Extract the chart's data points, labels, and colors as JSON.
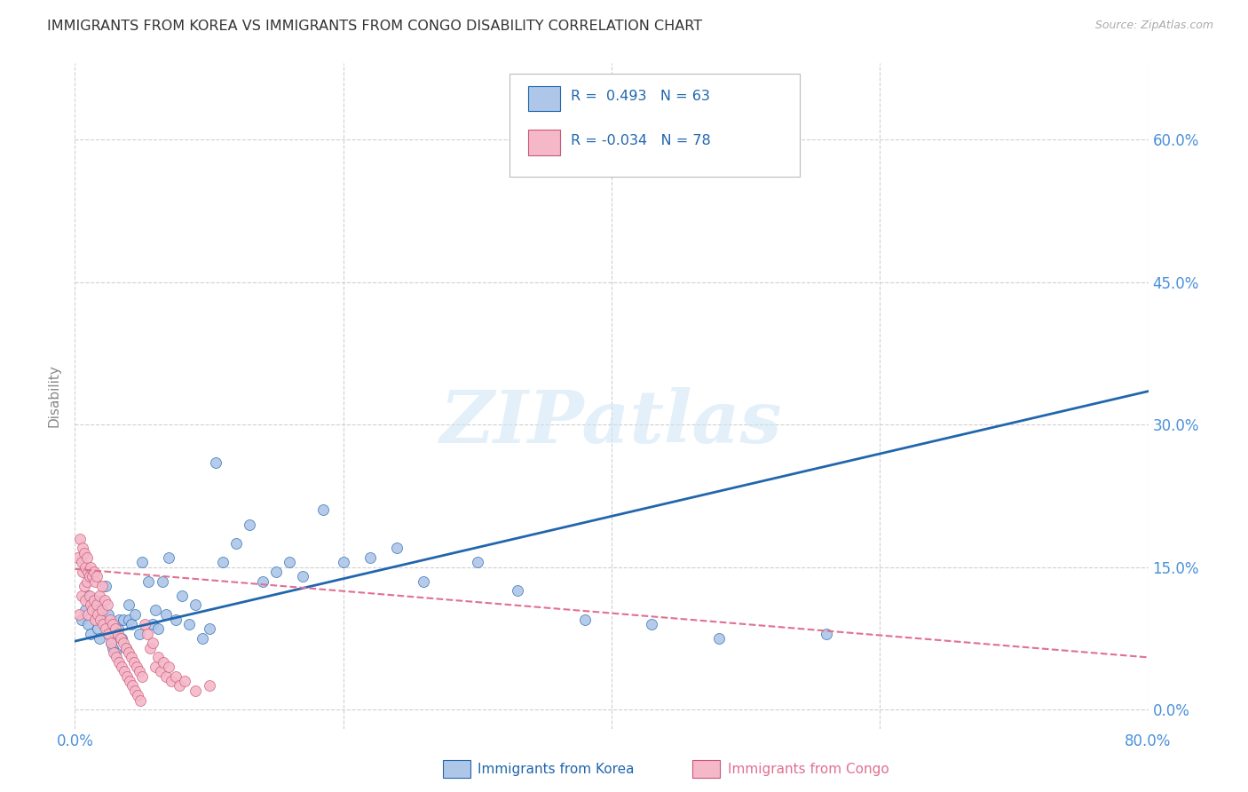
{
  "title": "IMMIGRANTS FROM KOREA VS IMMIGRANTS FROM CONGO DISABILITY CORRELATION CHART",
  "source": "Source: ZipAtlas.com",
  "ylabel": "Disability",
  "xlim": [
    0.0,
    0.8
  ],
  "ylim": [
    -0.02,
    0.68
  ],
  "yticks": [
    0.0,
    0.15,
    0.3,
    0.45,
    0.6
  ],
  "ytick_labels": [
    "0.0%",
    "15.0%",
    "30.0%",
    "45.0%",
    "60.0%"
  ],
  "xticks": [
    0.0,
    0.2,
    0.4,
    0.6,
    0.8
  ],
  "korea_R": 0.493,
  "korea_N": 63,
  "congo_R": -0.034,
  "congo_N": 78,
  "korea_color": "#aec6e8",
  "congo_color": "#f4b8c8",
  "korea_line_color": "#2166ac",
  "congo_line_color": "#e07090",
  "watermark": "ZIPatlas",
  "background_color": "#ffffff",
  "grid_color": "#d0d0d0",
  "title_color": "#333333",
  "axis_label_color": "#888888",
  "tick_color": "#4a90d9",
  "legend_r_color": "#2166ac",
  "korea_scatter_x": [
    0.005,
    0.008,
    0.01,
    0.01,
    0.012,
    0.013,
    0.015,
    0.015,
    0.017,
    0.018,
    0.02,
    0.02,
    0.022,
    0.023,
    0.025,
    0.025,
    0.027,
    0.028,
    0.03,
    0.03,
    0.032,
    0.033,
    0.035,
    0.036,
    0.038,
    0.04,
    0.04,
    0.042,
    0.045,
    0.048,
    0.05,
    0.055,
    0.058,
    0.06,
    0.062,
    0.065,
    0.068,
    0.07,
    0.075,
    0.08,
    0.085,
    0.09,
    0.095,
    0.1,
    0.105,
    0.11,
    0.12,
    0.13,
    0.14,
    0.15,
    0.16,
    0.17,
    0.185,
    0.2,
    0.22,
    0.24,
    0.26,
    0.3,
    0.33,
    0.38,
    0.43,
    0.48,
    0.56
  ],
  "korea_scatter_y": [
    0.095,
    0.105,
    0.09,
    0.12,
    0.08,
    0.11,
    0.1,
    0.115,
    0.085,
    0.075,
    0.095,
    0.105,
    0.09,
    0.13,
    0.08,
    0.1,
    0.07,
    0.065,
    0.08,
    0.06,
    0.085,
    0.095,
    0.075,
    0.095,
    0.065,
    0.095,
    0.11,
    0.09,
    0.1,
    0.08,
    0.155,
    0.135,
    0.09,
    0.105,
    0.085,
    0.135,
    0.1,
    0.16,
    0.095,
    0.12,
    0.09,
    0.11,
    0.075,
    0.085,
    0.26,
    0.155,
    0.175,
    0.195,
    0.135,
    0.145,
    0.155,
    0.14,
    0.21,
    0.155,
    0.16,
    0.17,
    0.135,
    0.155,
    0.125,
    0.095,
    0.09,
    0.075,
    0.08
  ],
  "congo_scatter_x": [
    0.002,
    0.003,
    0.004,
    0.005,
    0.005,
    0.006,
    0.006,
    0.007,
    0.007,
    0.008,
    0.008,
    0.009,
    0.009,
    0.01,
    0.01,
    0.011,
    0.011,
    0.012,
    0.012,
    0.013,
    0.013,
    0.014,
    0.014,
    0.015,
    0.015,
    0.016,
    0.016,
    0.017,
    0.018,
    0.019,
    0.02,
    0.02,
    0.021,
    0.022,
    0.023,
    0.024,
    0.025,
    0.026,
    0.027,
    0.028,
    0.029,
    0.03,
    0.031,
    0.032,
    0.033,
    0.034,
    0.035,
    0.036,
    0.037,
    0.038,
    0.039,
    0.04,
    0.041,
    0.042,
    0.043,
    0.044,
    0.045,
    0.046,
    0.047,
    0.048,
    0.049,
    0.05,
    0.052,
    0.054,
    0.056,
    0.058,
    0.06,
    0.062,
    0.064,
    0.066,
    0.068,
    0.07,
    0.072,
    0.075,
    0.078,
    0.082,
    0.09,
    0.1
  ],
  "congo_scatter_y": [
    0.16,
    0.1,
    0.18,
    0.12,
    0.155,
    0.145,
    0.17,
    0.13,
    0.165,
    0.115,
    0.15,
    0.135,
    0.16,
    0.1,
    0.145,
    0.12,
    0.14,
    0.11,
    0.15,
    0.105,
    0.14,
    0.115,
    0.145,
    0.095,
    0.135,
    0.11,
    0.14,
    0.1,
    0.12,
    0.095,
    0.105,
    0.13,
    0.09,
    0.115,
    0.085,
    0.11,
    0.08,
    0.095,
    0.07,
    0.09,
    0.06,
    0.085,
    0.055,
    0.08,
    0.05,
    0.075,
    0.045,
    0.07,
    0.04,
    0.065,
    0.035,
    0.06,
    0.03,
    0.055,
    0.025,
    0.05,
    0.02,
    0.045,
    0.015,
    0.04,
    0.01,
    0.035,
    0.09,
    0.08,
    0.065,
    0.07,
    0.045,
    0.055,
    0.04,
    0.05,
    0.035,
    0.045,
    0.03,
    0.035,
    0.025,
    0.03,
    0.02,
    0.025
  ],
  "korea_line": {
    "x0": 0.0,
    "y0": 0.072,
    "x1": 0.8,
    "y1": 0.335
  },
  "congo_line": {
    "x0": 0.0,
    "y0": 0.148,
    "x1": 0.8,
    "y1": 0.055
  }
}
